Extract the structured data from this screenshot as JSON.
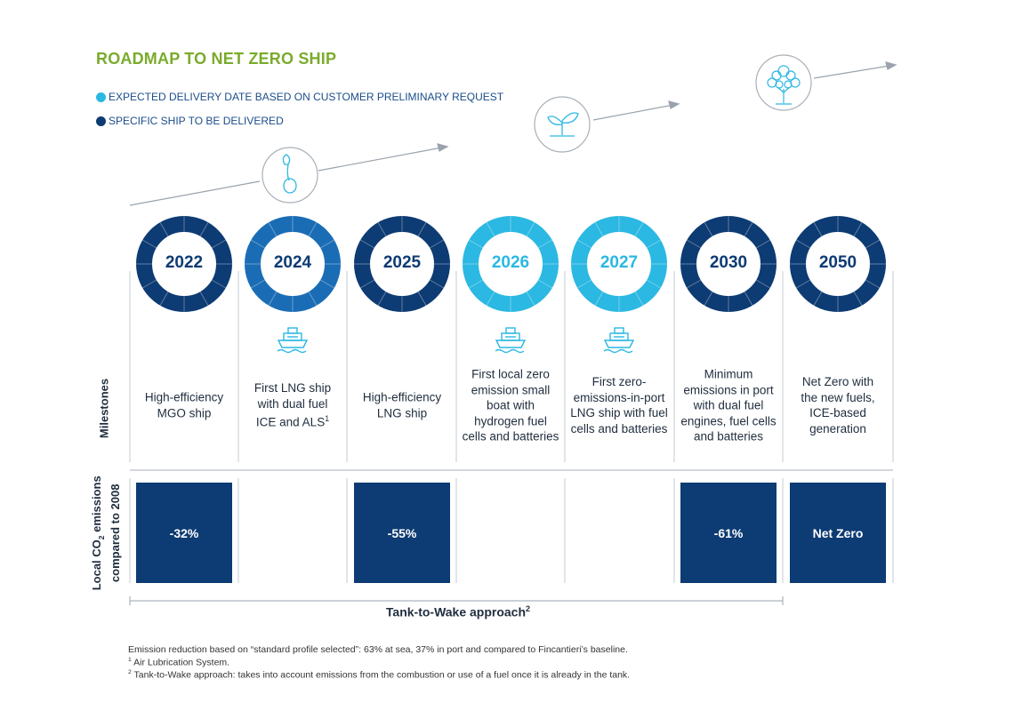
{
  "title": "ROADMAP TO NET ZERO SHIP",
  "legend": [
    {
      "label": "EXPECTED DELIVERY DATE BASED ON CUSTOMER PRELIMINARY REQUEST",
      "color": "#2bb8e2"
    },
    {
      "label": "SPECIFIC SHIP TO BE DELIVERED",
      "color": "#0d3b73"
    }
  ],
  "growth_icons": [
    "sprout-icon",
    "seedling-icon",
    "tree-icon"
  ],
  "milestones": [
    {
      "year": "2022",
      "ring_color": "#0d3b73",
      "text_color": "#0d3b73",
      "has_ship_icon": false,
      "text": "High-efficiency MGO ship",
      "emission": "-32%"
    },
    {
      "year": "2024",
      "ring_color": "#1a6db5",
      "text_color": "#0d3b73",
      "has_ship_icon": true,
      "text": "First LNG ship with dual fuel ICE and ALS",
      "text_sup": "1",
      "emission": ""
    },
    {
      "year": "2025",
      "ring_color": "#0d3b73",
      "text_color": "#0d3b73",
      "has_ship_icon": false,
      "text": "High-efficiency LNG ship",
      "emission": "-55%"
    },
    {
      "year": "2026",
      "ring_color": "#2bb8e2",
      "text_color": "#2bb8e2",
      "has_ship_icon": true,
      "text": "First local zero emission small boat with hydrogen fuel cells and batteries",
      "emission": ""
    },
    {
      "year": "2027",
      "ring_color": "#2bb8e2",
      "text_color": "#2bb8e2",
      "has_ship_icon": true,
      "text": "First zero-emissions-in-port LNG ship with fuel cells and batteries",
      "emission": ""
    },
    {
      "year": "2030",
      "ring_color": "#0d3b73",
      "text_color": "#0d3b73",
      "has_ship_icon": false,
      "text": "Minimum emissions in port with dual fuel engines, fuel cells and batteries",
      "emission": "-61%"
    },
    {
      "year": "2050",
      "ring_color": "#0d3b73",
      "text_color": "#0d3b73",
      "has_ship_icon": false,
      "text": "Net Zero with the new fuels, ICE-based generation",
      "emission": "Net Zero"
    }
  ],
  "row_labels": {
    "milestones": "Milestones",
    "emissions_line1_pre": "Local CO",
    "emissions_line1_sub": "2",
    "emissions_line1_post": " emissions",
    "emissions_line2": "compared to 2008"
  },
  "approach": {
    "label": "Tank-to-Wake approach",
    "sup": "2"
  },
  "footnotes": {
    "main": "Emission reduction based on “standard profile selected”: 63% at sea, 37% in port and compared to Fincantieri’s baseline.",
    "note1_mark": "1",
    "note1_text": " Air Lubrication System.",
    "note2_mark": "2",
    "note2_text": " Tank-to-Wake approach: takes into account emissions from the combustion or use of a fuel once it is already in the tank."
  }
}
